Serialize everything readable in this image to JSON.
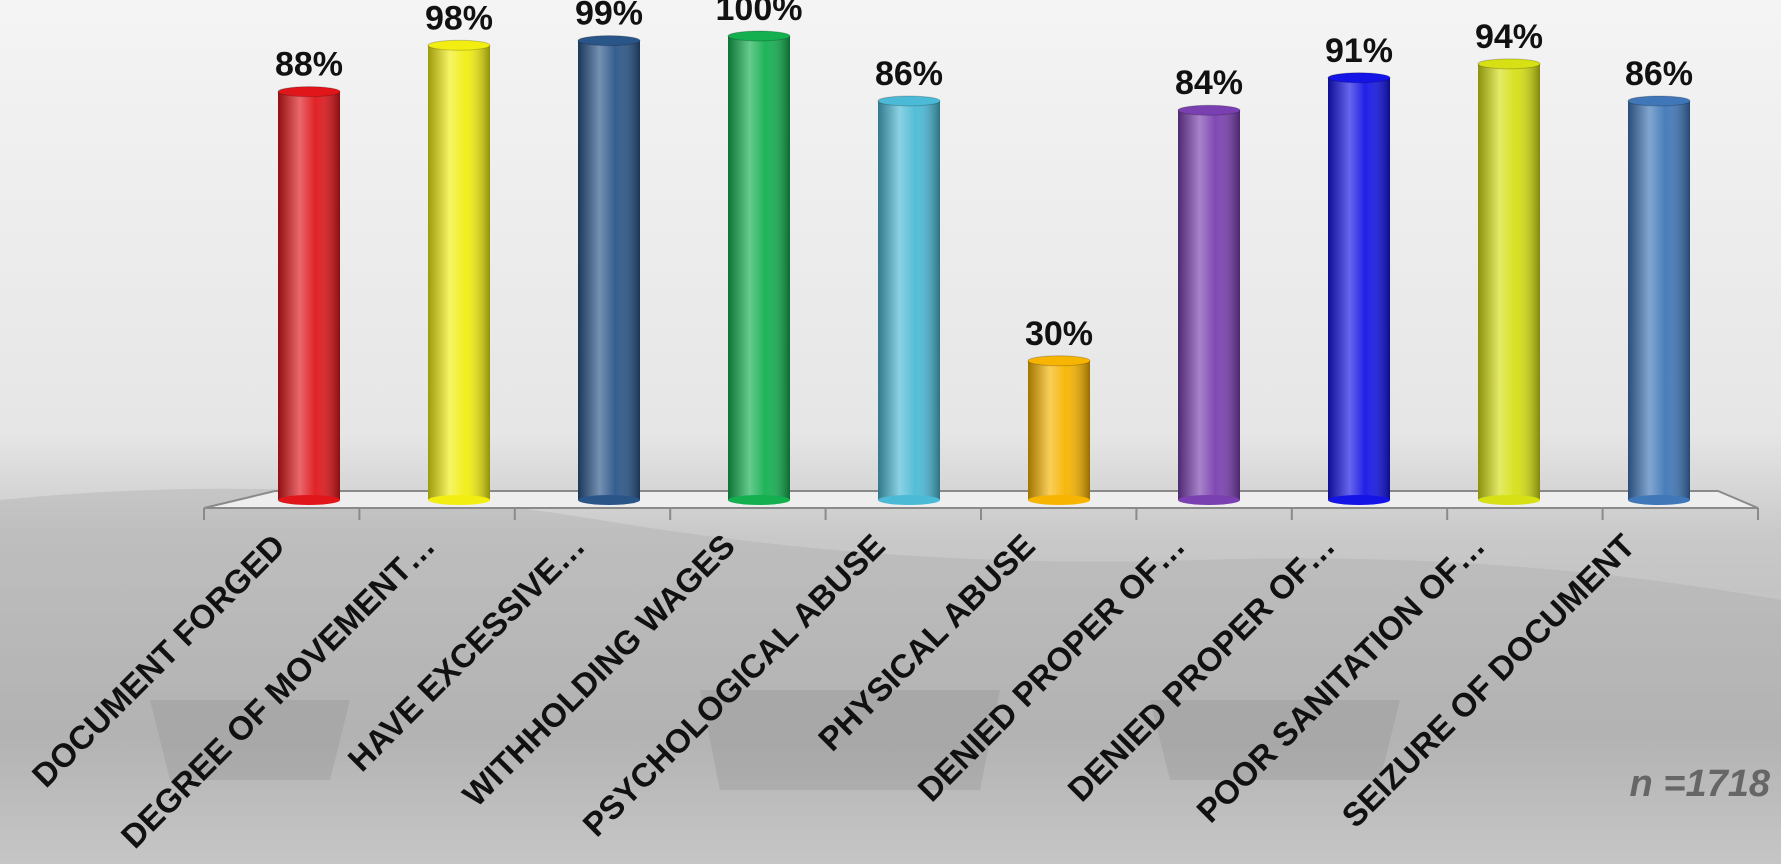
{
  "chart_data": {
    "type": "bar",
    "categories": [
      "DOCUMENT FORGED",
      "DEGREE OF MOVEMENT…",
      "HAVE EXCESSIVE…",
      "WITHHOLDING WAGES",
      "PSYCHOLOGICAL ABUSE",
      "PHYSICAL ABUSE",
      "DENIED PROPER OF…",
      "DENIED PROPER OF…",
      "POOR SANITATION OF…",
      "SEIZURE OF DOCUMENT"
    ],
    "values": [
      88,
      98,
      99,
      100,
      86,
      30,
      84,
      91,
      94,
      86
    ],
    "value_labels": [
      "88%",
      "98%",
      "99%",
      "100%",
      "86%",
      "30%",
      "84%",
      "91%",
      "94%",
      "86%"
    ],
    "colors": [
      "#e0161b",
      "#f2ee12",
      "#2a5589",
      "#14b050",
      "#4bbad6",
      "#f7b400",
      "#7a3fb0",
      "#1414e6",
      "#d6e014",
      "#3f77b8"
    ],
    "ylim": [
      0,
      100
    ],
    "annotation": "n =1718"
  }
}
